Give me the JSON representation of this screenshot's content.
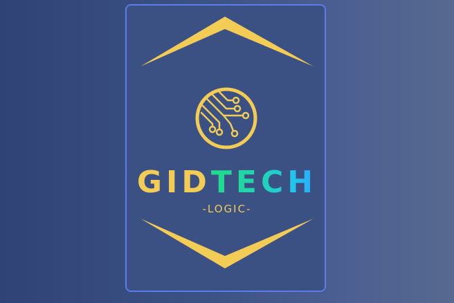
{
  "logo": {
    "brand_part1": "GID",
    "brand_part2": "TECH",
    "tagline": "-LOGIC-",
    "emblem_icon": "circuit-circle-icon"
  },
  "colors": {
    "background": "#3a4f86",
    "frame_border": "#5b7bf0",
    "gold": "#f2cc55",
    "tech_gradient_start": "#22d98a",
    "tech_gradient_end": "#2aa8ff"
  }
}
